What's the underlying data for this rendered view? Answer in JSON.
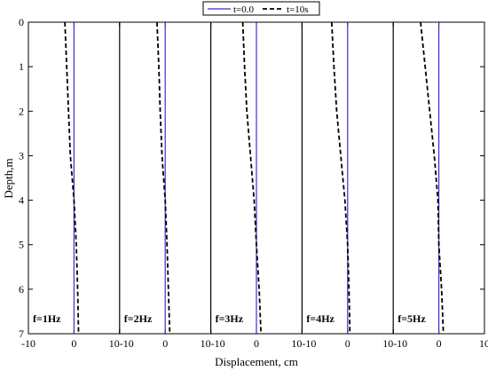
{
  "chart_data": {
    "type": "line",
    "xlabel": "Displacement, cm",
    "ylabel": "Depth,m",
    "xlim": [
      -10,
      10
    ],
    "ylim": [
      0,
      7
    ],
    "y_inverted": true,
    "x_ticks": [
      -10,
      0,
      10
    ],
    "y_ticks": [
      0,
      1,
      2,
      3,
      4,
      5,
      6,
      7
    ],
    "grid": false,
    "legend_position": "top-center",
    "legend": [
      {
        "name": "t=0.0",
        "style": "solid",
        "color": "#3333cc"
      },
      {
        "name": "t=10s",
        "style": "dashed",
        "color": "#000000"
      }
    ],
    "panels": [
      {
        "label": "f=1Hz",
        "series": [
          {
            "name": "t=0.0",
            "depth": [
              0,
              7
            ],
            "displacement": [
              0,
              0
            ]
          },
          {
            "name": "t=10s",
            "depth": [
              0,
              1,
              2,
              3,
              4,
              5,
              6,
              7
            ],
            "displacement": [
              -2.0,
              -1.6,
              -1.2,
              -0.8,
              0.0,
              0.5,
              0.8,
              1.0
            ]
          }
        ]
      },
      {
        "label": "f=2Hz",
        "series": [
          {
            "name": "t=0.0",
            "depth": [
              0,
              7
            ],
            "displacement": [
              0,
              0
            ]
          },
          {
            "name": "t=10s",
            "depth": [
              0,
              1,
              2,
              3,
              4,
              5,
              6,
              7
            ],
            "displacement": [
              -1.8,
              -1.4,
              -1.1,
              -0.7,
              0.0,
              0.4,
              0.7,
              1.0
            ]
          }
        ]
      },
      {
        "label": "f=3Hz",
        "series": [
          {
            "name": "t=0.0",
            "depth": [
              0,
              7
            ],
            "displacement": [
              0,
              0
            ]
          },
          {
            "name": "t=10s",
            "depth": [
              0,
              1,
              2,
              3,
              4,
              5,
              6,
              7
            ],
            "displacement": [
              -3.0,
              -2.6,
              -2.1,
              -1.3,
              -0.5,
              0.0,
              0.6,
              1.0
            ]
          }
        ]
      },
      {
        "label": "f=4Hz",
        "series": [
          {
            "name": "t=0.0",
            "depth": [
              0,
              7
            ],
            "displacement": [
              0,
              0
            ]
          },
          {
            "name": "t=10s",
            "depth": [
              0,
              1,
              2,
              3,
              4,
              5,
              6,
              7
            ],
            "displacement": [
              -3.5,
              -3.0,
              -2.4,
              -1.5,
              -0.6,
              0.0,
              0.3,
              0.5
            ]
          }
        ]
      },
      {
        "label": "f=5Hz",
        "series": [
          {
            "name": "t=0.0",
            "depth": [
              0,
              7
            ],
            "displacement": [
              0,
              0
            ]
          },
          {
            "name": "t=10s",
            "depth": [
              0,
              1,
              2,
              3,
              4,
              5,
              6,
              7
            ],
            "displacement": [
              -4.0,
              -3.0,
              -2.0,
              -1.0,
              -0.2,
              0.0,
              0.6,
              1.0
            ]
          }
        ]
      }
    ]
  }
}
